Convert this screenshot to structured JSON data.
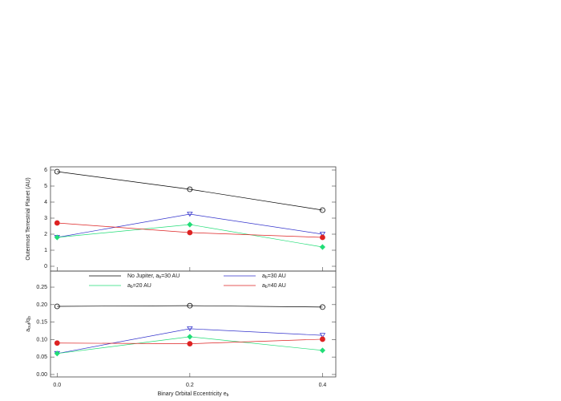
{
  "chart_data": [
    {
      "type": "line",
      "y_label": "Outermost Terrestrial Planet (AU)",
      "x": [
        0.0,
        0.2,
        0.4
      ],
      "xlim": [
        -0.01,
        0.42
      ],
      "ylim": [
        -0.3,
        6.2
      ],
      "yticks": [
        0,
        1,
        2,
        3,
        4,
        5,
        6
      ],
      "series": [
        {
          "color": "#000000",
          "marker": "circle-open",
          "values": [
            5.9,
            4.8,
            3.5
          ]
        },
        {
          "color": "#3333cc",
          "marker": "triangle-open",
          "values": [
            1.8,
            3.25,
            2.0
          ]
        },
        {
          "color": "#22dd77",
          "marker": "diamond",
          "values": [
            1.8,
            2.6,
            1.2
          ]
        },
        {
          "color": "#dd2222",
          "marker": "circle",
          "values": [
            2.7,
            2.1,
            1.8
          ]
        }
      ]
    },
    {
      "type": "line",
      "y_label": "a_out/q_b",
      "x_label": "Binary Orbital Eccentricity e_b",
      "x": [
        0.0,
        0.2,
        0.4
      ],
      "xlim": [
        -0.01,
        0.42
      ],
      "xticks": [
        {
          "value": 0,
          "label": "0.0"
        },
        0.2,
        0.4
      ],
      "ylim": [
        -0.007,
        0.296
      ],
      "yticks": [
        {
          "value": 0,
          "label": "0.00"
        },
        0.05,
        {
          "value": 0.1,
          "label": "0.10"
        },
        0.15,
        {
          "value": 0.2,
          "label": "0.20"
        },
        0.25
      ],
      "series": [
        {
          "name": "No Jupiter, a_b=30 AU",
          "color": "#000000",
          "marker": "circle-open",
          "values": [
            0.195,
            0.197,
            0.193
          ]
        },
        {
          "name": "a_b=30 AU",
          "color": "#3333cc",
          "marker": "triangle-open",
          "values": [
            0.06,
            0.131,
            0.112
          ]
        },
        {
          "name": "a_b=20 AU",
          "color": "#22dd77",
          "marker": "diamond",
          "values": [
            0.06,
            0.108,
            0.069
          ]
        },
        {
          "name": "a_b=40 AU",
          "color": "#dd2222",
          "marker": "circle",
          "values": [
            0.09,
            0.088,
            0.101
          ]
        }
      ]
    }
  ]
}
